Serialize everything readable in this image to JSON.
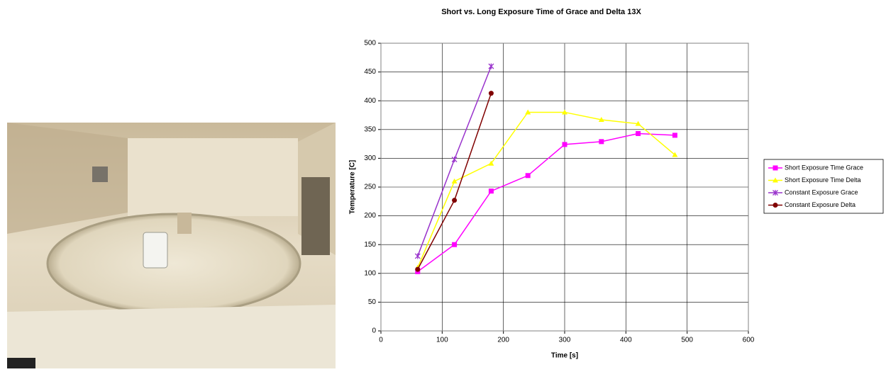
{
  "chart_data": {
    "type": "line",
    "title": "Short vs. Long Exposure Time of Grace and Delta 13X",
    "x_label": "Time [s]",
    "y_label": "Temperature [C]",
    "xlim": [
      0,
      600
    ],
    "xticks": [
      0,
      100,
      200,
      300,
      400,
      500,
      600
    ],
    "ylim": [
      0,
      500
    ],
    "yticks": [
      0,
      50,
      100,
      150,
      200,
      250,
      300,
      350,
      400,
      450,
      500
    ],
    "grid": true,
    "legend": "right",
    "series": [
      {
        "name": "Short Exposure Time Grace",
        "color": "#ff00ff",
        "marker": "square",
        "x": [
          60,
          120,
          180,
          240,
          300,
          360,
          420,
          480
        ],
        "values": [
          103,
          150,
          243,
          270,
          324,
          329,
          343,
          340
        ]
      },
      {
        "name": "Short Exposure Time Delta",
        "color": "#ffff00",
        "marker": "triangle",
        "x": [
          60,
          120,
          180,
          240,
          300,
          360,
          420,
          480
        ],
        "values": [
          110,
          260,
          291,
          380,
          380,
          367,
          360,
          306
        ]
      },
      {
        "name": "Constant Exposure Grace",
        "color": "#9933cc",
        "marker": "star",
        "x": [
          60,
          120,
          180
        ],
        "values": [
          130,
          298,
          460
        ]
      },
      {
        "name": "Constant Exposure Delta",
        "color": "#800000",
        "marker": "circle",
        "x": [
          60,
          120,
          180
        ],
        "values": [
          107,
          227,
          413
        ]
      }
    ]
  }
}
